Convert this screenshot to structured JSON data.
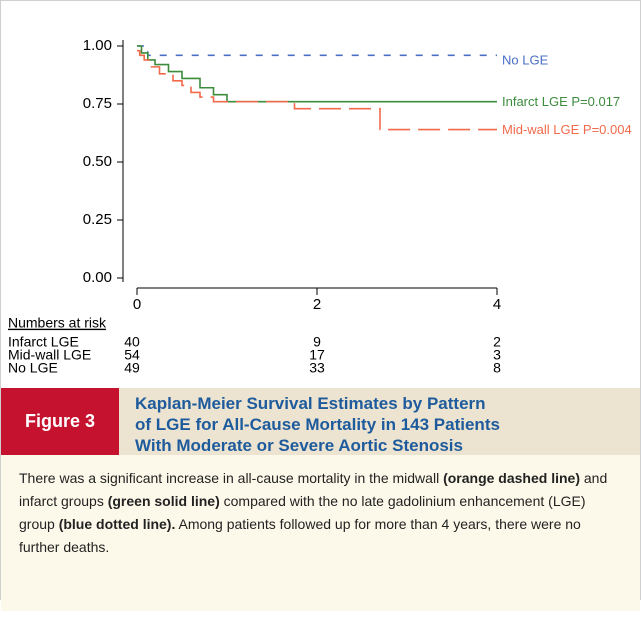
{
  "chart_data": {
    "type": "step",
    "xlim": [
      0,
      4
    ],
    "ylim": [
      0,
      1
    ],
    "xticks": [
      0,
      2,
      4
    ],
    "yticks": [
      {
        "value": 0,
        "label": "0.00"
      },
      {
        "value": 0.25,
        "label": "0.25"
      },
      {
        "value": 0.5,
        "label": "0.50"
      },
      {
        "value": 0.75,
        "label": "0.75"
      },
      {
        "value": 1,
        "label": "1.00"
      }
    ],
    "series": [
      {
        "name": "No LGE",
        "color": "#4a6fc4",
        "dash": "7,9",
        "x": [
          0,
          0.12,
          4
        ],
        "values": [
          1.0,
          0.96,
          0.96
        ]
      },
      {
        "name": "Infarct LGE P=0.017",
        "color": "#3c8c3c",
        "dash": "none",
        "x": [
          0,
          0.05,
          0.12,
          0.2,
          0.35,
          0.5,
          0.7,
          0.85,
          1.0,
          4
        ],
        "values": [
          1.0,
          0.97,
          0.94,
          0.92,
          0.89,
          0.86,
          0.82,
          0.79,
          0.76,
          0.76
        ]
      },
      {
        "name": "Mid-wall LGE P=0.004",
        "color": "#f26a4a",
        "dash": "22,8",
        "x": [
          0,
          0.03,
          0.08,
          0.15,
          0.25,
          0.4,
          0.5,
          0.6,
          0.7,
          0.85,
          1.75,
          2.7,
          4
        ],
        "values": [
          0.98,
          0.96,
          0.94,
          0.91,
          0.88,
          0.85,
          0.83,
          0.8,
          0.78,
          0.76,
          0.73,
          0.64,
          0.64
        ]
      }
    ]
  },
  "risk_table": {
    "title": "Numbers at risk",
    "rows": [
      {
        "label": "Infarct LGE",
        "values": [
          "40",
          "9",
          "2"
        ]
      },
      {
        "label": "Mid-wall LGE",
        "values": [
          "54",
          "17",
          "3"
        ]
      },
      {
        "label": "No LGE",
        "values": [
          "49",
          "33",
          "8"
        ]
      }
    ]
  },
  "figure": {
    "label": "Figure 3",
    "title_lines": [
      "Kaplan-Meier Survival Estimates by Pattern",
      "of LGE for All-Cause Mortality in 143 Patients",
      "With Moderate or Severe Aortic Stenosis"
    ]
  },
  "caption": [
    {
      "text": "There was a significant increase in all-cause mortality in the midwall ",
      "bold": false
    },
    {
      "text": "(orange dashed line)",
      "bold": true
    },
    {
      "text": " and infarct groups ",
      "bold": false
    },
    {
      "text": "(green solid line)",
      "bold": true
    },
    {
      "text": " compared with the no late gadolinium enhancement (LGE) group ",
      "bold": false
    },
    {
      "text": "(blue dotted line).",
      "bold": true
    },
    {
      "text": " Among patients followed up for more than 4 years, there were no further deaths.",
      "bold": false
    }
  ]
}
